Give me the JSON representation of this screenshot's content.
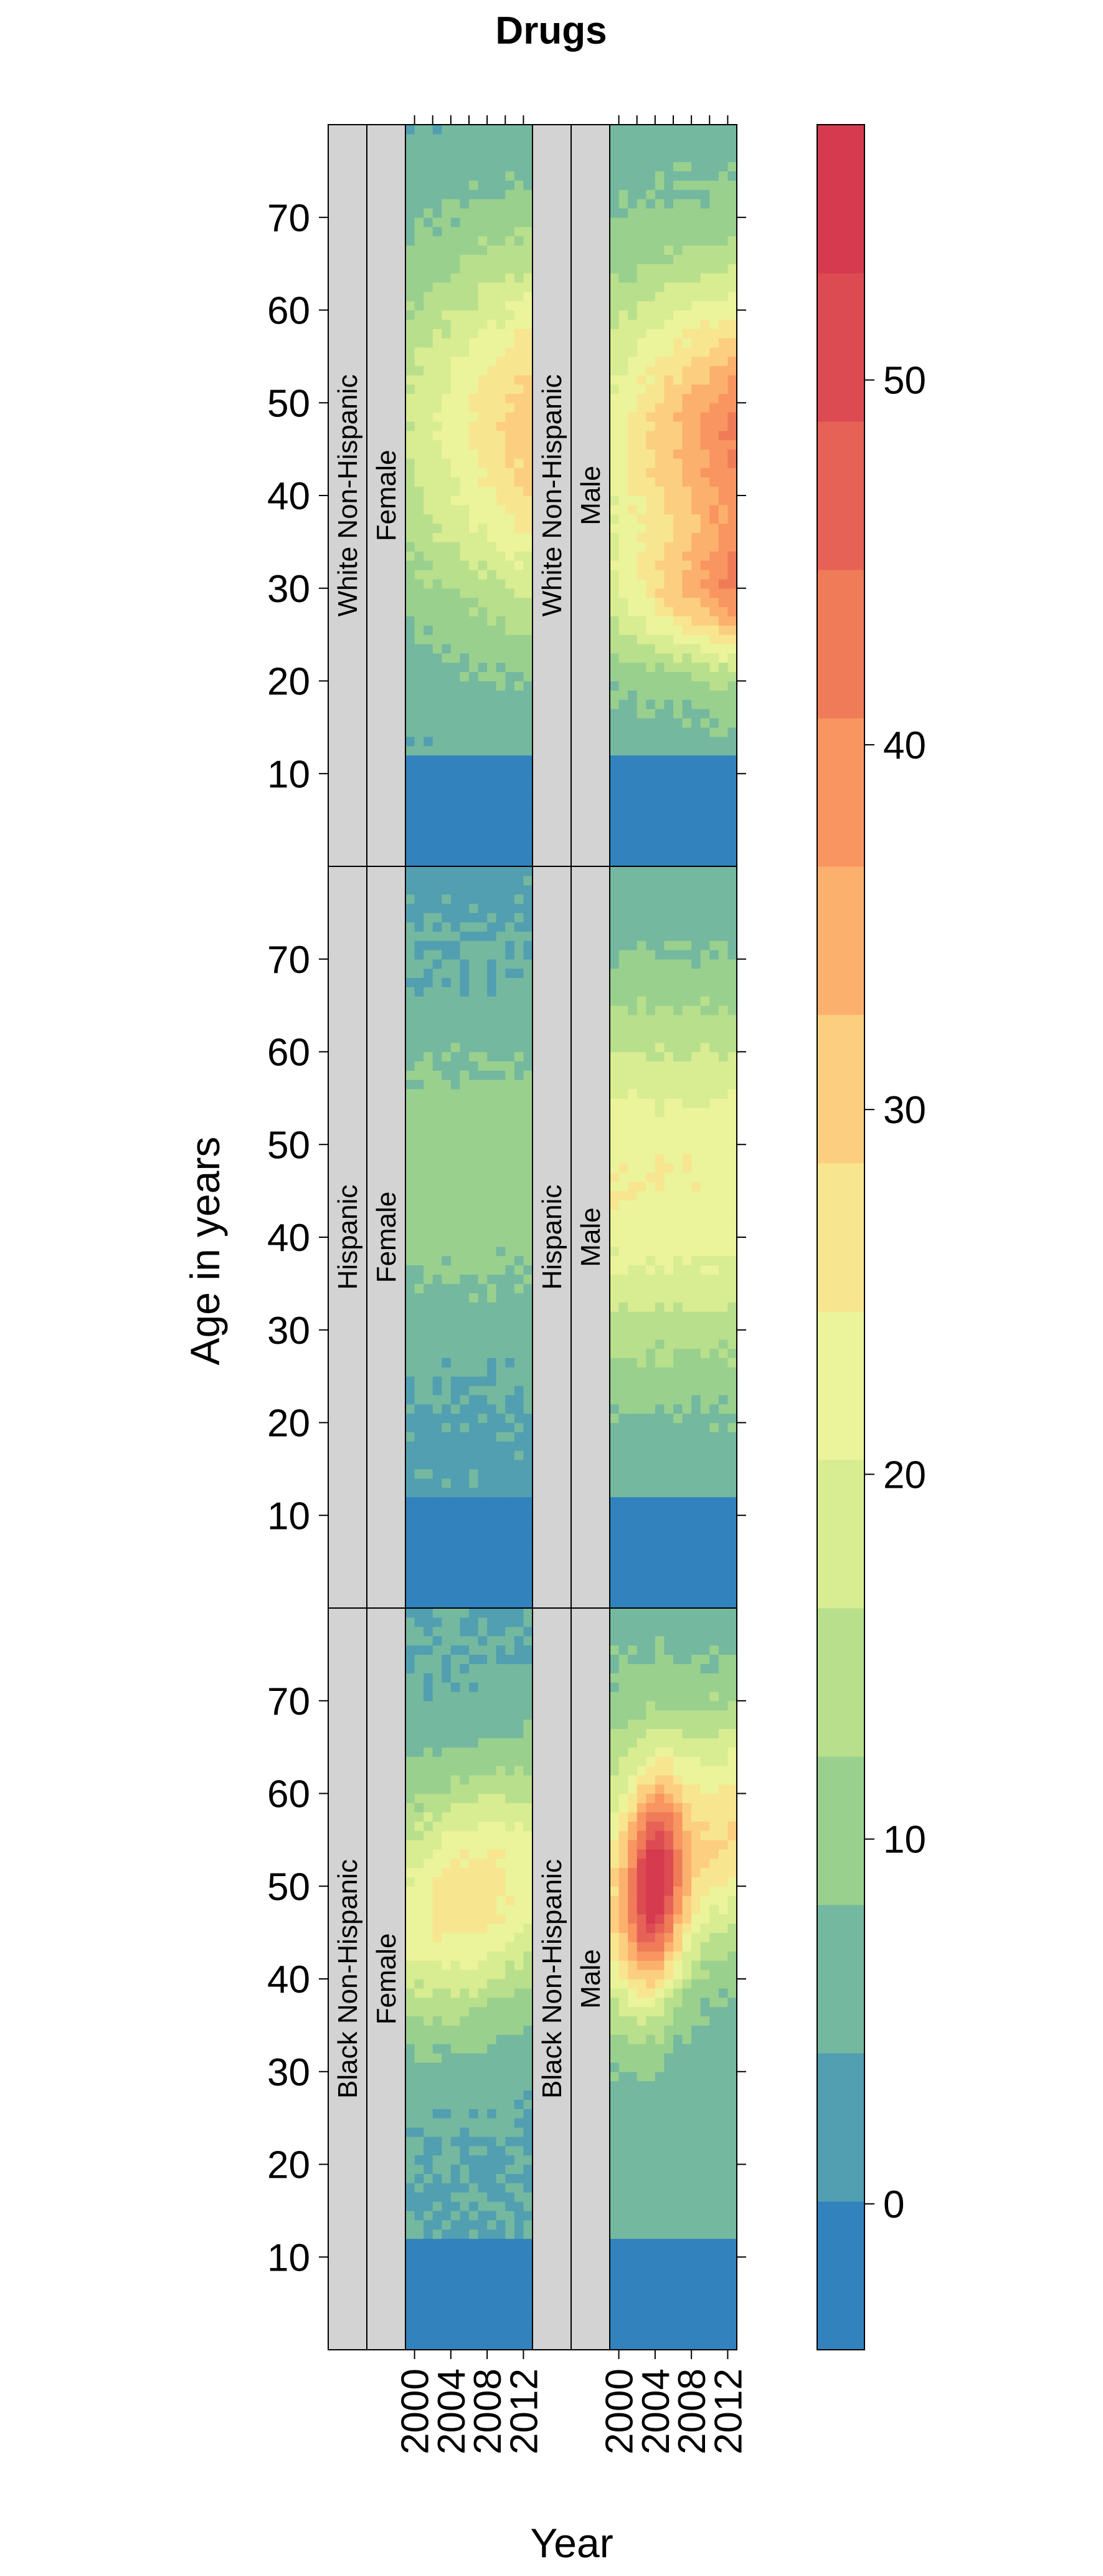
{
  "chart_data": {
    "type": "heatmap",
    "title": "Drugs",
    "xlabel": "Year",
    "ylabel": "Age in years",
    "x_ticks": [
      "2000",
      "2004",
      "2008",
      "2012"
    ],
    "y_ticks": [
      10,
      20,
      30,
      40,
      50,
      60,
      70
    ],
    "xlim": [
      1999,
      2013
    ],
    "ylim": [
      0,
      80
    ],
    "colorbar": {
      "range": [
        -4,
        57
      ],
      "ticks": [
        0,
        10,
        20,
        30,
        40,
        50
      ],
      "colors": [
        "#3182bd",
        "#519fb1",
        "#74b89f",
        "#99d08e",
        "#b8df8c",
        "#d8ec92",
        "#ebf39b",
        "#f8e58f",
        "#fccf80",
        "#fcb06d",
        "#f89560",
        "#ef7b58",
        "#e66256",
        "#dc4a52",
        "#d63a4f"
      ]
    },
    "panels": [
      {
        "race": "White Non-Hispanic",
        "sex": "Female",
        "peak_age": 47,
        "peak_value": 30,
        "note": "rate rising over years"
      },
      {
        "race": "White Non-Hispanic",
        "sex": "Male",
        "peak_age": 45,
        "peak_value": 43,
        "note": "two peaks near age 30 and 48 in later years"
      },
      {
        "race": "Hispanic",
        "sex": "Female",
        "peak_age": 47,
        "peak_value": 11,
        "note": "low throughout"
      },
      {
        "race": "Hispanic",
        "sex": "Male",
        "peak_age": 47,
        "peak_value": 24,
        "note": "moderate, stable over years"
      },
      {
        "race": "Black Non-Hispanic",
        "sex": "Female",
        "peak_age": 47,
        "peak_value": 28,
        "note": "peak mid-period"
      },
      {
        "race": "Black Non-Hispanic",
        "sex": "Male",
        "peak_age": 50,
        "peak_value": 55,
        "note": "strong peak around 2004 shifting to older ages"
      }
    ]
  }
}
